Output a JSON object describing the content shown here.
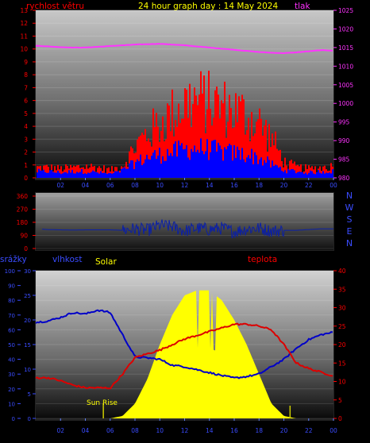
{
  "colors": {
    "wind": "#ff0000",
    "gust": "#ff0000",
    "wind_avg": "#0000ff",
    "pressure": "#ff33ff",
    "direction": "#0a1fa8",
    "humidity": "#0000c8",
    "temperature": "#dd0000",
    "solar": "#ffff00",
    "title": "#ffff00",
    "axis_red": "#ff0000",
    "axis_magenta": "#ff33ff",
    "axis_blue": "#3a4cff"
  },
  "chart_data": [
    {
      "type": "area",
      "title": "24 hour graph day : 14 May 2024",
      "left_axis_label": "rychlost větru",
      "right_axis_label": "tlak",
      "x_ticks": [
        "02",
        "04",
        "06",
        "08",
        "10",
        "12",
        "14",
        "16",
        "18",
        "20",
        "22",
        "00"
      ],
      "y_left_ticks": [
        "0",
        "1",
        "2",
        "3",
        "4",
        "5",
        "6",
        "7",
        "8",
        "9",
        "10",
        "11",
        "12",
        "13"
      ],
      "y_left_range": [
        0,
        13
      ],
      "y_right_ticks": [
        "980",
        "985",
        "990",
        "995",
        "1000",
        "1005",
        "1010",
        "1015",
        "1020",
        "1025"
      ],
      "y_right_range": [
        980,
        1025
      ],
      "x_hours": [
        0,
        1,
        2,
        3,
        4,
        5,
        6,
        7,
        8,
        9,
        10,
        11,
        12,
        13,
        14,
        15,
        16,
        17,
        18,
        19,
        20,
        21,
        22,
        23,
        24
      ],
      "series": [
        {
          "name": "tlak",
          "values": [
            1015.5,
            1015.3,
            1015.1,
            1015.0,
            1015.0,
            1015.2,
            1015.4,
            1015.6,
            1015.8,
            1015.9,
            1016.0,
            1015.8,
            1015.6,
            1015.3,
            1015.0,
            1014.7,
            1014.4,
            1014.1,
            1013.8,
            1013.6,
            1013.5,
            1013.7,
            1014.0,
            1014.3,
            1014.2
          ]
        },
        {
          "name": "gust",
          "values": [
            0.8,
            0.8,
            0.7,
            0.8,
            0.9,
            0.8,
            0.6,
            1.0,
            2.5,
            3.5,
            4.2,
            5.0,
            5.8,
            6.0,
            5.8,
            5.5,
            5.2,
            4.8,
            4.2,
            3.0,
            1.2,
            0.8,
            0.7,
            0.8,
            0.9
          ]
        },
        {
          "name": "average",
          "values": [
            0.5,
            0.5,
            0.4,
            0.5,
            0.5,
            0.4,
            0.3,
            0.6,
            1.2,
            1.6,
            1.8,
            2.0,
            2.2,
            2.3,
            2.2,
            2.0,
            1.9,
            1.8,
            1.5,
            1.0,
            0.6,
            0.5,
            0.4,
            0.5,
            0.5
          ]
        }
      ]
    },
    {
      "type": "line",
      "y_ticks": [
        "0",
        "90",
        "180",
        "270",
        "360"
      ],
      "y_range": [
        0,
        360
      ],
      "compass_labels": [
        "N",
        "W",
        "S",
        "E",
        "N"
      ],
      "x_hours": [
        0,
        1,
        2,
        3,
        4,
        5,
        6,
        7,
        8,
        9,
        10,
        11,
        12,
        13,
        14,
        15,
        16,
        17,
        18,
        19,
        20,
        21,
        22,
        23,
        24
      ],
      "series": [
        {
          "name": "direction",
          "values": [
            135,
            130,
            128,
            127,
            128,
            128,
            128,
            125,
            135,
            125,
            160,
            150,
            120,
            140,
            130,
            140,
            115,
            135,
            140,
            120,
            125,
            125,
            130,
            135,
            135
          ]
        }
      ]
    },
    {
      "type": "line",
      "title": "teplota",
      "axis_labels": [
        "srážky",
        "vlhkost",
        "Solar"
      ],
      "annotation": "Sun Rise",
      "x_ticks": [
        "02",
        "04",
        "06",
        "08",
        "10",
        "12",
        "14",
        "16",
        "18",
        "20",
        "22",
        "00"
      ],
      "y_rain_ticks": [
        "0",
        "10",
        "20",
        "30",
        "40",
        "50",
        "60",
        "70",
        "80",
        "90",
        "100"
      ],
      "y_rain_range": [
        0,
        100
      ],
      "y_hum_ticks": [
        "0",
        "5",
        "10",
        "15",
        "20",
        "25",
        "30"
      ],
      "y_hum_range": [
        0,
        30
      ],
      "y_temp_ticks": [
        "0",
        "5",
        "10",
        "15",
        "20",
        "25",
        "30",
        "35",
        "40"
      ],
      "y_temp_range": [
        0,
        40
      ],
      "x_hours": [
        0,
        1,
        2,
        3,
        4,
        5,
        6,
        7,
        8,
        9,
        10,
        11,
        12,
        13,
        14,
        15,
        16,
        17,
        18,
        19,
        20,
        21,
        22,
        23,
        24
      ],
      "series": [
        {
          "name": "vlhkost",
          "values": [
            19.5,
            19.8,
            20.5,
            21.5,
            21.2,
            22.0,
            21.5,
            17.0,
            12.5,
            12.3,
            12.0,
            10.8,
            10.5,
            9.9,
            9.3,
            8.7,
            8.2,
            8.5,
            9.0,
            10.5,
            12.0,
            14.2,
            16.0,
            17.0,
            17.5
          ]
        },
        {
          "name": "teplota",
          "values": [
            11.0,
            11.0,
            10.2,
            9.0,
            8.3,
            8.3,
            8.2,
            12.0,
            16.5,
            17.5,
            18.5,
            20.0,
            21.5,
            22.5,
            23.5,
            24.5,
            25.5,
            25.5,
            25.0,
            24.0,
            20.0,
            15.0,
            13.5,
            12.5,
            11.5
          ]
        },
        {
          "name": "Solar",
          "values": [
            0,
            0,
            0,
            0,
            0,
            0,
            0,
            0.5,
            3,
            8,
            15,
            21,
            25,
            26,
            26,
            24,
            20,
            15,
            9,
            3,
            0.5,
            0,
            0,
            0,
            0
          ]
        }
      ]
    }
  ]
}
